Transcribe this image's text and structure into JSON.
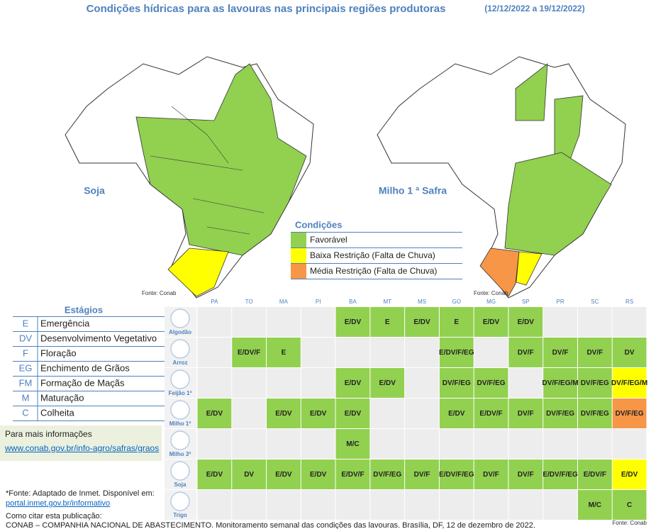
{
  "title": "Condições hídricas para as lavouras nas principais regiões produtoras",
  "date_range": "(12/12/2022 a 19/12/2022)",
  "maps": [
    {
      "label": "Soja",
      "source": "Fonte: Conab"
    },
    {
      "label": "Milho 1 ª Safra",
      "source": "Fonte: Conab"
    }
  ],
  "legend": {
    "title": "Condições",
    "items": [
      {
        "label": "Favorável",
        "color": "#92d050"
      },
      {
        "label": "Baixa Restrição (Falta de Chuva)",
        "color": "#ffff00"
      },
      {
        "label": "Média Restrição (Falta de Chuva)",
        "color": "#f79646"
      }
    ]
  },
  "stages": {
    "title": "Estágios",
    "items": [
      {
        "code": "E",
        "label": "Emergência"
      },
      {
        "code": "DV",
        "label": "Desenvolvimento Vegetativo"
      },
      {
        "code": "F",
        "label": "Floração"
      },
      {
        "code": "EG",
        "label": "Enchimento de Grãos"
      },
      {
        "code": "FM",
        "label": "Formação de Maçãs"
      },
      {
        "code": "M",
        "label": "Maturação"
      },
      {
        "code": "C",
        "label": "Colheita"
      }
    ]
  },
  "info": {
    "text": "Para mais informações",
    "link": "www.conab.gov.br/info-agro/safras/graos"
  },
  "table": {
    "states": [
      "PA",
      "TO",
      "MA",
      "PI",
      "BA",
      "MT",
      "MS",
      "GO",
      "MG",
      "SP",
      "PR",
      "SC",
      "RS"
    ],
    "rows": [
      {
        "crop": "Algodão",
        "cells": [
          null,
          null,
          null,
          null,
          {
            "text": "E/DV",
            "color": "#92d050"
          },
          {
            "text": "E",
            "color": "#92d050"
          },
          {
            "text": "E/DV",
            "color": "#92d050"
          },
          {
            "text": "E",
            "color": "#92d050"
          },
          {
            "text": "E/DV",
            "color": "#92d050"
          },
          {
            "text": "E/DV",
            "color": "#92d050"
          },
          null,
          null,
          null
        ]
      },
      {
        "crop": "Arroz",
        "cells": [
          null,
          {
            "text": "E/DV/F",
            "color": "#92d050"
          },
          {
            "text": "E",
            "color": "#92d050"
          },
          null,
          null,
          null,
          null,
          {
            "text": "E/DV/F/EG",
            "color": "#92d050"
          },
          null,
          {
            "text": "DV/F",
            "color": "#92d050"
          },
          {
            "text": "DV/F",
            "color": "#92d050"
          },
          {
            "text": "DV/F",
            "color": "#92d050"
          },
          {
            "text": "DV",
            "color": "#92d050"
          }
        ]
      },
      {
        "crop": "Feijão 1ª",
        "cells": [
          null,
          null,
          null,
          null,
          {
            "text": "E/DV",
            "color": "#92d050"
          },
          {
            "text": "E/DV",
            "color": "#92d050"
          },
          null,
          {
            "text": "DV/F/EG",
            "color": "#92d050"
          },
          {
            "text": "DV/F/EG",
            "color": "#92d050"
          },
          null,
          {
            "text": "DV/F/EG/M",
            "color": "#92d050"
          },
          {
            "text": "DV/F/EG",
            "color": "#92d050"
          },
          {
            "text": "DV/F/EG/M",
            "color": "#ffff00"
          }
        ]
      },
      {
        "crop": "Milho 1ª",
        "cells": [
          {
            "text": "E/DV",
            "color": "#92d050"
          },
          null,
          {
            "text": "E/DV",
            "color": "#92d050"
          },
          {
            "text": "E/DV",
            "color": "#92d050"
          },
          {
            "text": "E/DV",
            "color": "#92d050"
          },
          null,
          null,
          {
            "text": "E/DV",
            "color": "#92d050"
          },
          {
            "text": "E/DV/F",
            "color": "#92d050"
          },
          {
            "text": "DV/F",
            "color": "#92d050"
          },
          {
            "text": "DV/F/EG",
            "color": "#92d050"
          },
          {
            "text": "DV/F/EG",
            "color": "#92d050"
          },
          {
            "text": "DV/F/EG",
            "color": "#f79646"
          }
        ]
      },
      {
        "crop": "Milho 3ª",
        "cells": [
          null,
          null,
          null,
          null,
          {
            "text": "M/C",
            "color": "#92d050"
          },
          null,
          null,
          null,
          null,
          null,
          null,
          null,
          null
        ]
      },
      {
        "crop": "Soja",
        "cells": [
          {
            "text": "E/DV",
            "color": "#92d050"
          },
          {
            "text": "DV",
            "color": "#92d050"
          },
          {
            "text": "E/DV",
            "color": "#92d050"
          },
          {
            "text": "E/DV",
            "color": "#92d050"
          },
          {
            "text": "E/DV/F",
            "color": "#92d050"
          },
          {
            "text": "DV/F/EG",
            "color": "#92d050"
          },
          {
            "text": "DV/F",
            "color": "#92d050"
          },
          {
            "text": "E/DV/F/EG",
            "color": "#92d050"
          },
          {
            "text": "DV/F",
            "color": "#92d050"
          },
          {
            "text": "DV/F",
            "color": "#92d050"
          },
          {
            "text": "E/DV/F/EG",
            "color": "#92d050"
          },
          {
            "text": "E/DV/F",
            "color": "#92d050"
          },
          {
            "text": "E/DV",
            "color": "#ffff00"
          }
        ]
      },
      {
        "crop": "Trigo",
        "cells": [
          null,
          null,
          null,
          null,
          null,
          null,
          null,
          null,
          null,
          null,
          null,
          {
            "text": "M/C",
            "color": "#92d050"
          },
          {
            "text": "C",
            "color": "#92d050"
          }
        ]
      }
    ],
    "source": "Fonte: Conab"
  },
  "footer": {
    "source_note": "*Fonte: Adaptado de Inmet. Disponível em:",
    "source_link": "portal.inmet.gov.br/informativo",
    "cite_title": "Como citar esta publicação:",
    "citation": "CONAB – COMPANHIA NACIONAL DE ABASTECIMENTO. Monitoramento semanal das condições das lavouras. Brasília, DF, 12 de dezembro de 2022."
  }
}
